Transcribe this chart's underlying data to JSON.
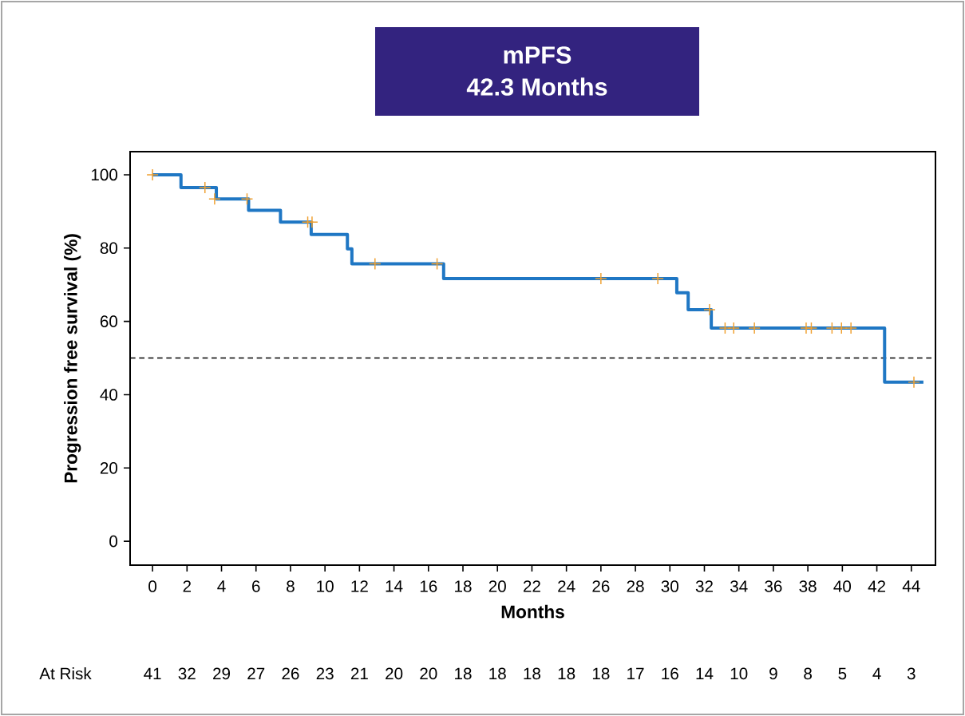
{
  "chart_data": {
    "type": "step",
    "title": "mPFS",
    "subtitle": "42.3 Months",
    "xlabel": "Months",
    "ylabel": "Progression free survival (%)",
    "xlim": [
      -1.3,
      45.4
    ],
    "ylim": [
      -6.5,
      106.3
    ],
    "xticks": [
      0,
      2,
      4,
      6,
      8,
      10,
      12,
      14,
      16,
      18,
      20,
      22,
      24,
      26,
      28,
      30,
      32,
      34,
      36,
      38,
      40,
      42,
      44
    ],
    "yticks": [
      0,
      20,
      40,
      60,
      80,
      100
    ],
    "series": [
      {
        "color": "#1f77c4",
        "x": [
          0,
          1.65,
          3.7,
          5.57,
          7.42,
          9.2,
          11.3,
          11.56,
          16.88,
          30.4,
          31.06,
          32.4,
          42.45,
          44.7
        ],
        "values": [
          100,
          96.5,
          93.4,
          90.3,
          87.1,
          83.7,
          79.8,
          75.7,
          71.7,
          67.8,
          63.2,
          58.2,
          43.4,
          43.4
        ]
      },
      {
        "type": "scatter",
        "marker": "cross",
        "color": "#f0a030",
        "x": [
          0,
          3.04,
          3.6,
          5.48,
          9.0,
          9.25,
          12.9,
          16.5,
          26.0,
          29.3,
          32.3,
          33.2,
          33.7,
          34.9,
          37.9,
          38.2,
          39.4,
          39.95,
          40.5,
          44.15
        ],
        "values": [
          100,
          96.5,
          93.4,
          93.4,
          87.1,
          87.1,
          75.7,
          75.7,
          71.7,
          71.7,
          63.2,
          58.2,
          58.2,
          58.2,
          58.2,
          58.2,
          58.2,
          58.2,
          58.2,
          43.4
        ]
      }
    ],
    "ref_lines": [
      {
        "axis": "y",
        "value": 50,
        "line_style": "dashed",
        "color": "#000000"
      }
    ],
    "annotations": [
      "At Risk",
      "41",
      "32",
      "29",
      "27",
      "26",
      "23",
      "21",
      "20",
      "20",
      "18",
      "18",
      "18",
      "18",
      "18",
      "17",
      "16",
      "14",
      "10",
      "9",
      "8",
      "5",
      "4",
      "3"
    ]
  }
}
